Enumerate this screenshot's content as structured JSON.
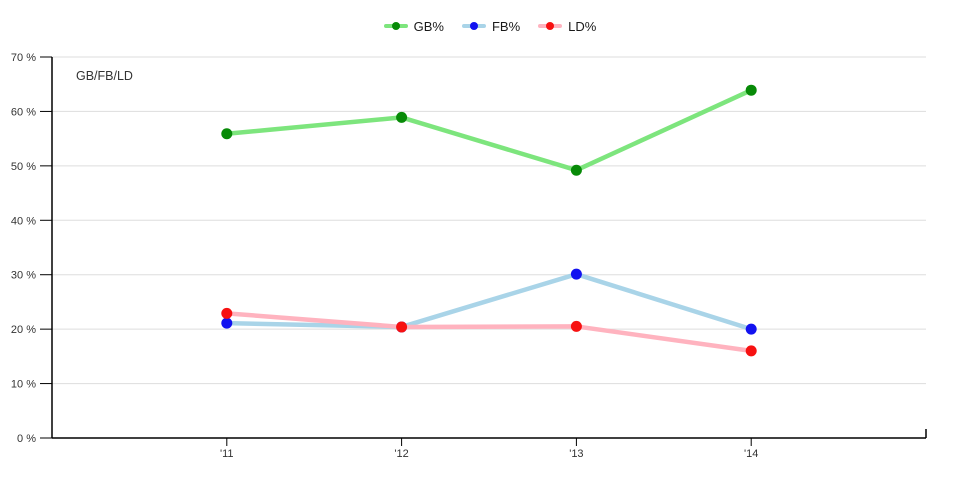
{
  "chart_data": {
    "type": "line",
    "title": "GB/FB/LD",
    "categories": [
      "'11",
      "'12",
      "'13",
      "'14"
    ],
    "series": [
      {
        "name": "GB%",
        "values": [
          55.9,
          58.9,
          49.2,
          63.9
        ],
        "line_color": "#7de57d",
        "marker_color": "#078a07"
      },
      {
        "name": "FB%",
        "values": [
          21.1,
          20.4,
          30.1,
          20.0
        ],
        "line_color": "#a9d4e8",
        "marker_color": "#1212f0"
      },
      {
        "name": "LD%",
        "values": [
          22.9,
          20.4,
          20.5,
          16.0
        ],
        "line_color": "#ffb3bf",
        "marker_color": "#f71111"
      }
    ],
    "y_axis": {
      "min": 0,
      "max": 70,
      "tick_step": 10,
      "tick_labels": [
        "0 %",
        "10 %",
        "20 %",
        "30 %",
        "40 %",
        "50 %",
        "60 %",
        "70 %"
      ]
    },
    "x_axis": {
      "tick_labels": [
        "'11",
        "'12",
        "'13",
        "'14"
      ]
    },
    "legend": {
      "position": "top"
    },
    "grid": true,
    "colors": {
      "gridline": "#dddddd",
      "axis": "#000000",
      "tick_text": "#333333",
      "title_text": "#333333"
    }
  }
}
